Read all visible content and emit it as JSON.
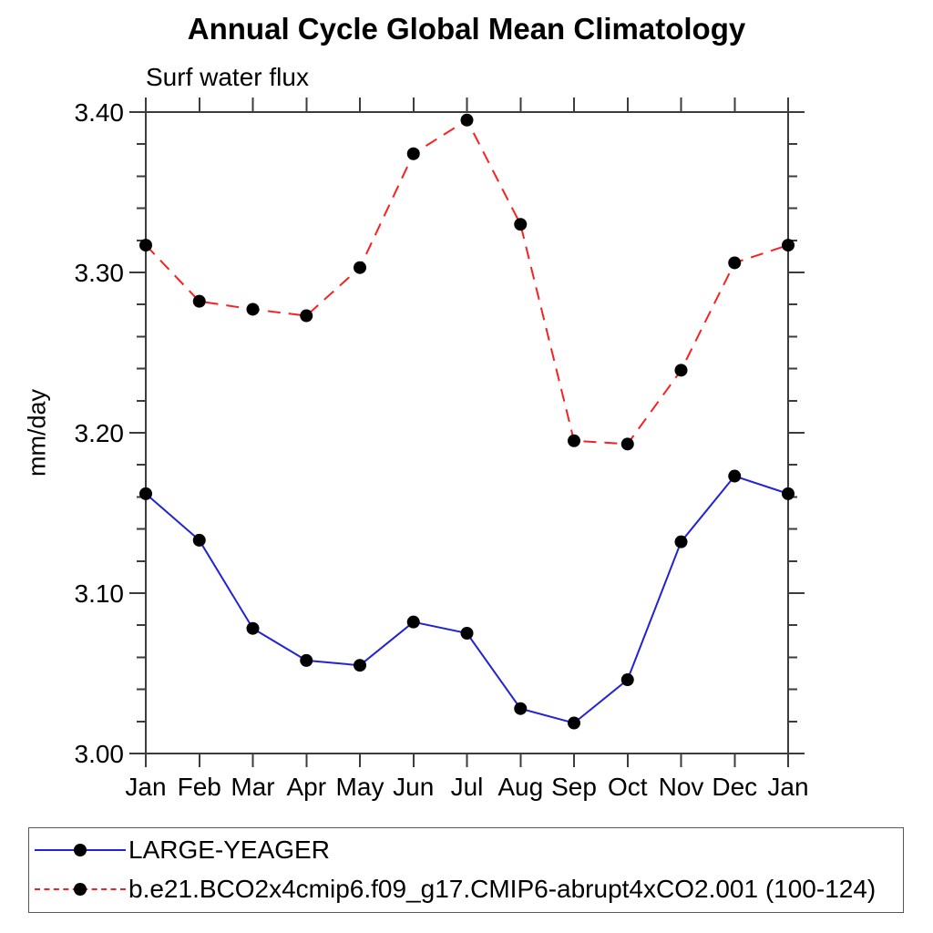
{
  "chart_data": {
    "type": "line",
    "title": "Annual Cycle Global Mean Climatology",
    "subtitle": "Surf water flux",
    "ylabel": "mm/day",
    "xlabel": "",
    "categories": [
      "Jan",
      "Feb",
      "Mar",
      "Apr",
      "May",
      "Jun",
      "Jul",
      "Aug",
      "Sep",
      "Oct",
      "Nov",
      "Dec",
      "Jan"
    ],
    "series": [
      {
        "name": "LARGE-YEAGER",
        "color": "#2222d6",
        "line_style": "solid",
        "marker": "filled-circle",
        "marker_color": "#000000",
        "values": [
          3.162,
          3.133,
          3.078,
          3.058,
          3.055,
          3.082,
          3.075,
          3.028,
          3.019,
          3.046,
          3.132,
          3.173,
          3.162
        ]
      },
      {
        "name": "b.e21.BCO2x4cmip6.f09_g17.CMIP6-abrupt4xCO2.001 (100-124)",
        "color": "#fb2020",
        "line_style": "dashed",
        "marker": "filled-circle",
        "marker_color": "#000000",
        "values": [
          3.317,
          3.282,
          3.277,
          3.273,
          3.303,
          3.374,
          3.395,
          3.33,
          3.195,
          3.193,
          3.239,
          3.306,
          3.317
        ]
      }
    ],
    "ylim": [
      3.0,
      3.4
    ],
    "yticks_major": [
      3.0,
      3.1,
      3.2,
      3.3,
      3.4
    ],
    "ytick_labels": [
      "3.00",
      "3.10",
      "3.20",
      "3.30",
      "3.40"
    ],
    "ytick_minor_step": 0.02,
    "grid": false,
    "legend_position": "bottom-left-box",
    "axis_color": "#3c3c3c",
    "text_color": "#000000"
  }
}
